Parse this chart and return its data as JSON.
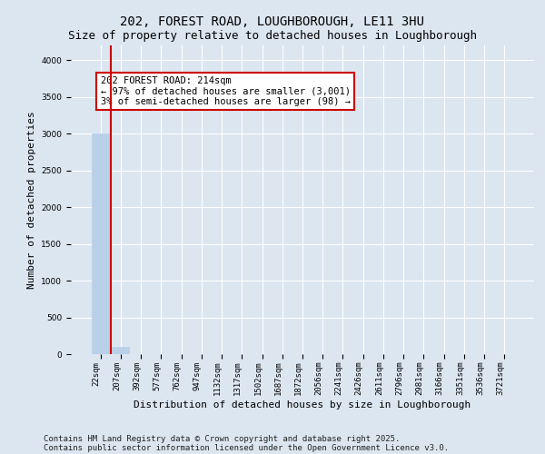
{
  "title_line1": "202, FOREST ROAD, LOUGHBOROUGH, LE11 3HU",
  "title_line2": "Size of property relative to detached houses in Loughborough",
  "xlabel": "Distribution of detached houses by size in Loughborough",
  "ylabel": "Number of detached properties",
  "annotation_title": "202 FOREST ROAD: 214sqm",
  "annotation_line2": "← 97% of detached houses are smaller (3,001)",
  "annotation_line3": "3% of semi-detached houses are larger (98) →",
  "footer_line1": "Contains HM Land Registry data © Crown copyright and database right 2025.",
  "footer_line2": "Contains public sector information licensed under the Open Government Licence v3.0.",
  "categories": [
    "22sqm",
    "207sqm",
    "392sqm",
    "577sqm",
    "762sqm",
    "947sqm",
    "1132sqm",
    "1317sqm",
    "1502sqm",
    "1687sqm",
    "1872sqm",
    "2056sqm",
    "2241sqm",
    "2426sqm",
    "2611sqm",
    "2796sqm",
    "2981sqm",
    "3166sqm",
    "3351sqm",
    "3536sqm",
    "3721sqm"
  ],
  "values": [
    3001,
    98,
    5,
    1,
    0,
    0,
    0,
    0,
    0,
    0,
    0,
    0,
    0,
    0,
    0,
    0,
    0,
    0,
    0,
    0,
    0
  ],
  "bar_color": "#b8d0e8",
  "bar_edge_color": "#b8d0e8",
  "property_line_color": "#cc0000",
  "property_line_x": 1.5,
  "ylim": [
    0,
    4200
  ],
  "yticks": [
    0,
    500,
    1000,
    1500,
    2000,
    2500,
    3000,
    3500,
    4000
  ],
  "background_color": "#dce6f0",
  "plot_background_color": "#dce6f0",
  "grid_color": "#ffffff",
  "annotation_box_color": "#cc0000",
  "title_fontsize": 10,
  "subtitle_fontsize": 9,
  "tick_fontsize": 6.5,
  "ylabel_fontsize": 8,
  "xlabel_fontsize": 8,
  "footer_fontsize": 6.5,
  "ann_fontsize": 7.5
}
